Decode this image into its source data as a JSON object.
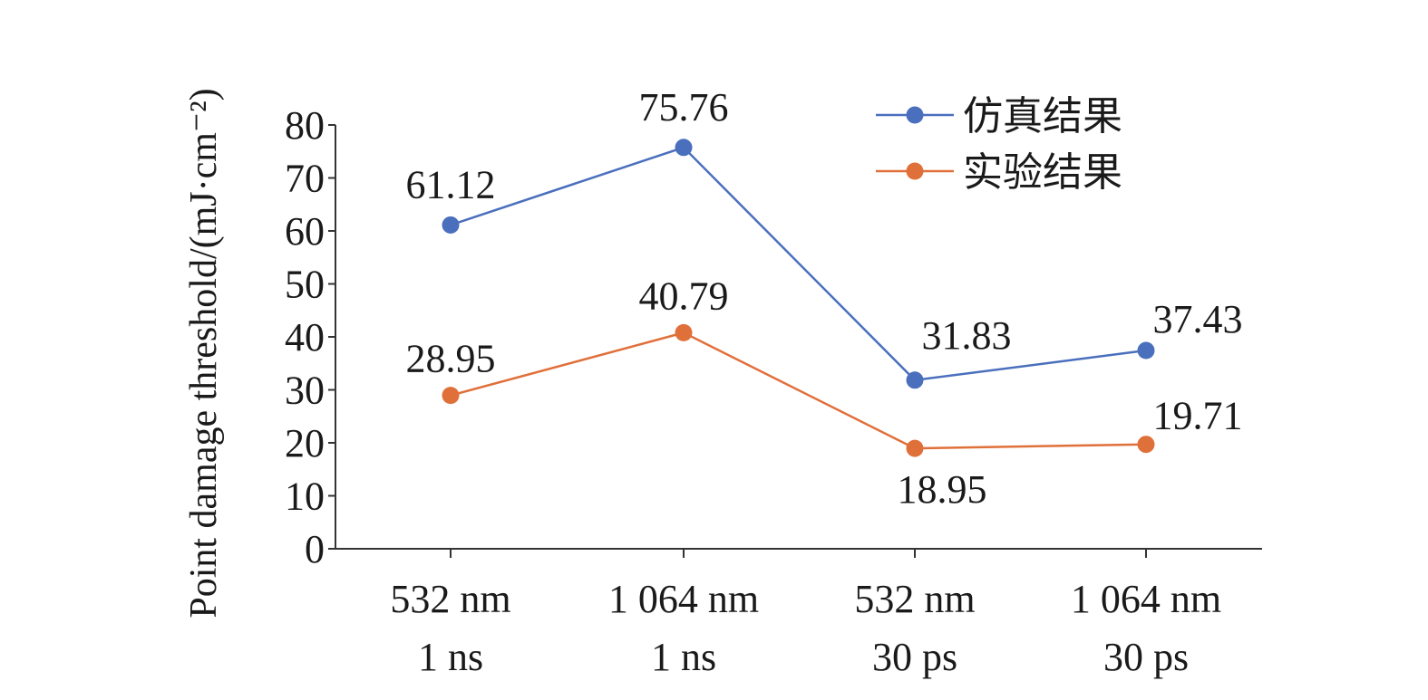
{
  "chart_data": {
    "type": "line",
    "title": "",
    "xlabel": "",
    "ylabel": "Point damage threshold/(mJ·cm⁻²)",
    "ylim": [
      0,
      80
    ],
    "yticks": [
      "0",
      "10",
      "20",
      "30",
      "40",
      "50",
      "60",
      "70",
      "80"
    ],
    "categories": [
      [
        "532 nm",
        "1 ns"
      ],
      [
        "1 064 nm",
        "1 ns"
      ],
      [
        "532 nm",
        "30 ps"
      ],
      [
        "1 064 nm",
        "30 ps"
      ]
    ],
    "series": [
      {
        "name": "仿真结果",
        "color": "#4a6fbd",
        "values": [
          61.12,
          75.76,
          31.83,
          37.43
        ],
        "labels": [
          "61.12",
          "75.76",
          "31.83",
          "37.43"
        ]
      },
      {
        "name": "实验结果",
        "color": "#e0703a",
        "values": [
          28.95,
          40.79,
          18.95,
          19.71
        ],
        "labels": [
          "28.95",
          "40.79",
          "18.95",
          "19.71"
        ]
      }
    ],
    "grid": false,
    "legend": "top-right"
  }
}
